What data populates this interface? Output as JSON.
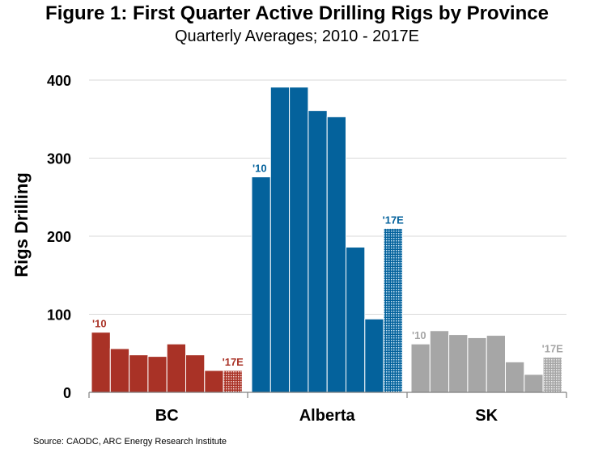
{
  "title": "Figure 1: First Quarter Active Drilling Rigs by Province",
  "subtitle": "Quarterly Averages; 2010 - 2017E",
  "source": "Source: CAODC, ARC Energy Research Institute",
  "chart_data": {
    "type": "bar",
    "title": "Figure 1: First Quarter Active Drilling Rigs by Province",
    "subtitle": "Quarterly Averages; 2010 - 2017E",
    "xlabel": "",
    "ylabel": "Rigs Drilling",
    "ylim": [
      0,
      400
    ],
    "yticks": [
      0,
      100,
      200,
      300,
      400
    ],
    "grid": true,
    "legend": "none",
    "categories": [
      "BC",
      "Alberta",
      "SK"
    ],
    "groups": [
      {
        "name": "BC",
        "color": "#a93226",
        "start_label": "'10",
        "end_label": "'17E",
        "values": [
          77,
          56,
          48,
          46,
          62,
          48,
          28,
          28
        ]
      },
      {
        "name": "Alberta",
        "color": "#04629c",
        "start_label": "'10",
        "end_label": "'17E",
        "values": [
          276,
          391,
          391,
          361,
          353,
          186,
          94,
          210
        ]
      },
      {
        "name": "SK",
        "color": "#a6a6a6",
        "start_label": "'10",
        "end_label": "'17E",
        "values": [
          62,
          79,
          74,
          70,
          73,
          39,
          23,
          45
        ]
      }
    ]
  }
}
